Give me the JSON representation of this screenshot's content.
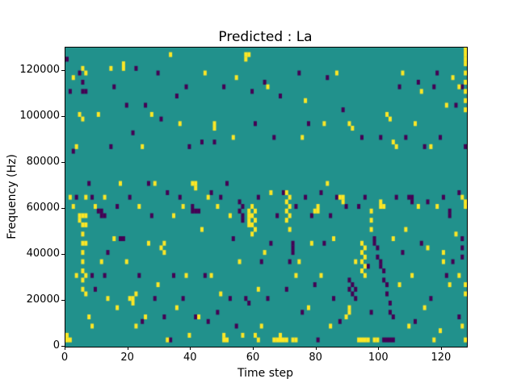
{
  "title": "Predicted : La",
  "chart_data": {
    "type": "heatmap",
    "title": "Predicted : La",
    "xlabel": "Time step",
    "ylabel": "Frequency (Hz)",
    "xlim": [
      0,
      128
    ],
    "ylim": [
      0,
      130000
    ],
    "x_ticks": [
      0,
      20,
      40,
      60,
      80,
      100,
      120
    ],
    "y_ticks": [
      0,
      20000,
      40000,
      60000,
      80000,
      100000,
      120000
    ],
    "grid": false,
    "legend": "none",
    "cell_size": {
      "x": 1,
      "y": 2000
    },
    "colors": {
      "background": "#21918c",
      "high": "#fde725",
      "low": "#440154"
    },
    "cells_high": [
      [
        0,
        2000
      ],
      [
        0,
        4000
      ],
      [
        1,
        2000
      ],
      [
        1,
        64000
      ],
      [
        2,
        116000
      ],
      [
        2,
        60000
      ],
      [
        3,
        30000
      ],
      [
        4,
        56000
      ],
      [
        4,
        54000
      ],
      [
        5,
        56000
      ],
      [
        5,
        52000
      ],
      [
        5,
        48000
      ],
      [
        5,
        44000
      ],
      [
        5,
        40000
      ],
      [
        5,
        36000
      ],
      [
        5,
        32000
      ],
      [
        5,
        28000
      ],
      [
        5,
        24000
      ],
      [
        6,
        56000
      ],
      [
        6,
        52000
      ],
      [
        6,
        44000
      ],
      [
        6,
        30000
      ],
      [
        6,
        22000
      ],
      [
        5,
        120000
      ],
      [
        6,
        118000
      ],
      [
        4,
        100000
      ],
      [
        5,
        98000
      ],
      [
        3,
        86000
      ],
      [
        6,
        64000
      ],
      [
        7,
        12000
      ],
      [
        8,
        8000
      ],
      [
        9,
        60000
      ],
      [
        10,
        100000
      ],
      [
        11,
        36000
      ],
      [
        12,
        64000
      ],
      [
        13,
        20000
      ],
      [
        14,
        120000
      ],
      [
        15,
        46000
      ],
      [
        16,
        16000
      ],
      [
        17,
        70000
      ],
      [
        18,
        122000
      ],
      [
        18,
        120000
      ],
      [
        19,
        36000
      ],
      [
        20,
        20000
      ],
      [
        21,
        20000
      ],
      [
        21,
        18000
      ],
      [
        22,
        22000
      ],
      [
        22,
        8000
      ],
      [
        23,
        60000
      ],
      [
        24,
        86000
      ],
      [
        25,
        12000
      ],
      [
        26,
        44000
      ],
      [
        27,
        100000
      ],
      [
        28,
        70000
      ],
      [
        29,
        26000
      ],
      [
        30,
        42000
      ],
      [
        31,
        40000
      ],
      [
        31,
        44000
      ],
      [
        32,
        2000
      ],
      [
        33,
        126000
      ],
      [
        34,
        56000
      ],
      [
        35,
        16000
      ],
      [
        36,
        96000
      ],
      [
        37,
        60000
      ],
      [
        38,
        30000
      ],
      [
        39,
        4000
      ],
      [
        40,
        70000
      ],
      [
        41,
        70000
      ],
      [
        41,
        68000
      ],
      [
        42,
        12000
      ],
      [
        43,
        50000
      ],
      [
        44,
        118000
      ],
      [
        45,
        64000
      ],
      [
        46,
        30000
      ],
      [
        47,
        96000
      ],
      [
        47,
        94000
      ],
      [
        48,
        60000
      ],
      [
        49,
        22000
      ],
      [
        50,
        4000
      ],
      [
        50,
        2000
      ],
      [
        51,
        2000
      ],
      [
        52,
        56000
      ],
      [
        53,
        90000
      ],
      [
        54,
        116000
      ],
      [
        55,
        36000
      ],
      [
        56,
        4000
      ],
      [
        57,
        126000
      ],
      [
        57,
        124000
      ],
      [
        58,
        126000
      ],
      [
        58,
        58000
      ],
      [
        58,
        56000
      ],
      [
        58,
        54000
      ],
      [
        58,
        52000
      ],
      [
        59,
        60000
      ],
      [
        59,
        56000
      ],
      [
        59,
        52000
      ],
      [
        59,
        48000
      ],
      [
        60,
        58000
      ],
      [
        60,
        54000
      ],
      [
        60,
        50000
      ],
      [
        60,
        4000
      ],
      [
        61,
        2000
      ],
      [
        61,
        24000
      ],
      [
        62,
        8000
      ],
      [
        63,
        40000
      ],
      [
        64,
        112000
      ],
      [
        65,
        66000
      ],
      [
        66,
        2000
      ],
      [
        67,
        2000
      ],
      [
        68,
        2000
      ],
      [
        68,
        4000
      ],
      [
        69,
        2000
      ],
      [
        70,
        2000
      ],
      [
        70,
        66000
      ],
      [
        70,
        62000
      ],
      [
        70,
        58000
      ],
      [
        70,
        54000
      ],
      [
        71,
        64000
      ],
      [
        71,
        60000
      ],
      [
        71,
        56000
      ],
      [
        71,
        50000
      ],
      [
        72,
        2000
      ],
      [
        73,
        2000
      ],
      [
        73,
        30000
      ],
      [
        74,
        36000
      ],
      [
        75,
        90000
      ],
      [
        76,
        106000
      ],
      [
        77,
        16000
      ],
      [
        78,
        44000
      ],
      [
        79,
        58000
      ],
      [
        80,
        60000
      ],
      [
        80,
        58000
      ],
      [
        81,
        30000
      ],
      [
        82,
        96000
      ],
      [
        83,
        70000
      ],
      [
        84,
        8000
      ],
      [
        85,
        46000
      ],
      [
        86,
        118000
      ],
      [
        87,
        64000
      ],
      [
        88,
        64000
      ],
      [
        88,
        62000
      ],
      [
        89,
        12000
      ],
      [
        90,
        16000
      ],
      [
        90,
        14000
      ],
      [
        90,
        96000
      ],
      [
        91,
        94000
      ],
      [
        92,
        36000
      ],
      [
        93,
        2000
      ],
      [
        94,
        2000
      ],
      [
        94,
        44000
      ],
      [
        94,
        40000
      ],
      [
        94,
        36000
      ],
      [
        94,
        32000
      ],
      [
        95,
        42000
      ],
      [
        95,
        38000
      ],
      [
        95,
        34000
      ],
      [
        95,
        30000
      ],
      [
        95,
        2000
      ],
      [
        96,
        2000
      ],
      [
        97,
        58000
      ],
      [
        97,
        54000
      ],
      [
        97,
        50000
      ],
      [
        98,
        2000
      ],
      [
        99,
        2000
      ],
      [
        100,
        62000
      ],
      [
        100,
        60000
      ],
      [
        101,
        60000
      ],
      [
        102,
        100000
      ],
      [
        103,
        98000
      ],
      [
        104,
        88000
      ],
      [
        104,
        46000
      ],
      [
        105,
        86000
      ],
      [
        106,
        26000
      ],
      [
        107,
        118000
      ],
      [
        108,
        50000
      ],
      [
        109,
        8000
      ],
      [
        110,
        30000
      ],
      [
        111,
        96000
      ],
      [
        112,
        60000
      ],
      [
        113,
        110000
      ],
      [
        114,
        16000
      ],
      [
        115,
        42000
      ],
      [
        116,
        86000
      ],
      [
        117,
        2000
      ],
      [
        118,
        60000
      ],
      [
        119,
        6000
      ],
      [
        120,
        40000
      ],
      [
        120,
        36000
      ],
      [
        121,
        104000
      ],
      [
        122,
        26000
      ],
      [
        123,
        116000
      ],
      [
        124,
        48000
      ],
      [
        125,
        30000
      ],
      [
        126,
        8000
      ],
      [
        127,
        128000
      ],
      [
        127,
        126000
      ],
      [
        127,
        124000
      ],
      [
        127,
        122000
      ],
      [
        127,
        118000
      ],
      [
        127,
        114000
      ],
      [
        127,
        110000
      ],
      [
        127,
        106000
      ],
      [
        127,
        102000
      ],
      [
        127,
        62000
      ],
      [
        127,
        60000
      ],
      [
        127,
        26000
      ],
      [
        127,
        22000
      ],
      [
        127,
        2000
      ],
      [
        126,
        64000
      ],
      [
        125,
        112000
      ]
    ],
    "cells_low": [
      [
        0,
        124000
      ],
      [
        1,
        110000
      ],
      [
        2,
        84000
      ],
      [
        3,
        64000
      ],
      [
        4,
        118000
      ],
      [
        5,
        114000
      ],
      [
        5,
        110000
      ],
      [
        6,
        110000
      ],
      [
        7,
        70000
      ],
      [
        8,
        64000
      ],
      [
        8,
        30000
      ],
      [
        9,
        24000
      ],
      [
        10,
        58000
      ],
      [
        11,
        58000
      ],
      [
        11,
        56000
      ],
      [
        12,
        56000
      ],
      [
        12,
        30000
      ],
      [
        13,
        40000
      ],
      [
        14,
        86000
      ],
      [
        15,
        112000
      ],
      [
        16,
        60000
      ],
      [
        17,
        46000
      ],
      [
        18,
        46000
      ],
      [
        19,
        104000
      ],
      [
        20,
        64000
      ],
      [
        21,
        92000
      ],
      [
        22,
        120000
      ],
      [
        23,
        30000
      ],
      [
        24,
        10000
      ],
      [
        25,
        104000
      ],
      [
        26,
        70000
      ],
      [
        27,
        56000
      ],
      [
        28,
        20000
      ],
      [
        29,
        118000
      ],
      [
        30,
        98000
      ],
      [
        31,
        12000
      ],
      [
        32,
        66000
      ],
      [
        33,
        2000
      ],
      [
        34,
        30000
      ],
      [
        35,
        108000
      ],
      [
        36,
        64000
      ],
      [
        37,
        20000
      ],
      [
        38,
        112000
      ],
      [
        39,
        86000
      ],
      [
        40,
        60000
      ],
      [
        40,
        58000
      ],
      [
        41,
        58000
      ],
      [
        41,
        12000
      ],
      [
        42,
        58000
      ],
      [
        43,
        88000
      ],
      [
        44,
        30000
      ],
      [
        45,
        10000
      ],
      [
        46,
        66000
      ],
      [
        47,
        88000
      ],
      [
        48,
        14000
      ],
      [
        49,
        64000
      ],
      [
        50,
        112000
      ],
      [
        51,
        70000
      ],
      [
        52,
        20000
      ],
      [
        53,
        46000
      ],
      [
        54,
        8000
      ],
      [
        55,
        62000
      ],
      [
        55,
        58000
      ],
      [
        56,
        60000
      ],
      [
        56,
        56000
      ],
      [
        56,
        54000
      ],
      [
        57,
        20000
      ],
      [
        58,
        18000
      ],
      [
        59,
        110000
      ],
      [
        60,
        96000
      ],
      [
        61,
        64000
      ],
      [
        62,
        36000
      ],
      [
        63,
        114000
      ],
      [
        64,
        20000
      ],
      [
        65,
        44000
      ],
      [
        66,
        90000
      ],
      [
        67,
        56000
      ],
      [
        68,
        108000
      ],
      [
        69,
        66000
      ],
      [
        70,
        24000
      ],
      [
        71,
        36000
      ],
      [
        72,
        44000
      ],
      [
        72,
        42000
      ],
      [
        72,
        40000
      ],
      [
        73,
        60000
      ],
      [
        74,
        118000
      ],
      [
        75,
        14000
      ],
      [
        76,
        64000
      ],
      [
        77,
        96000
      ],
      [
        78,
        56000
      ],
      [
        79,
        26000
      ],
      [
        80,
        2000
      ],
      [
        81,
        66000
      ],
      [
        82,
        44000
      ],
      [
        83,
        116000
      ],
      [
        84,
        56000
      ],
      [
        85,
        20000
      ],
      [
        86,
        64000
      ],
      [
        87,
        10000
      ],
      [
        88,
        102000
      ],
      [
        89,
        60000
      ],
      [
        90,
        28000
      ],
      [
        90,
        24000
      ],
      [
        91,
        26000
      ],
      [
        91,
        22000
      ],
      [
        92,
        24000
      ],
      [
        92,
        20000
      ],
      [
        93,
        60000
      ],
      [
        94,
        90000
      ],
      [
        95,
        64000
      ],
      [
        96,
        34000
      ],
      [
        97,
        14000
      ],
      [
        98,
        46000
      ],
      [
        98,
        44000
      ],
      [
        99,
        42000
      ],
      [
        99,
        38000
      ],
      [
        100,
        90000
      ],
      [
        100,
        36000
      ],
      [
        100,
        34000
      ],
      [
        101,
        32000
      ],
      [
        101,
        28000
      ],
      [
        101,
        2000
      ],
      [
        102,
        26000
      ],
      [
        102,
        22000
      ],
      [
        102,
        2000
      ],
      [
        103,
        18000
      ],
      [
        103,
        14000
      ],
      [
        103,
        2000
      ],
      [
        104,
        12000
      ],
      [
        104,
        2000
      ],
      [
        105,
        64000
      ],
      [
        106,
        112000
      ],
      [
        107,
        40000
      ],
      [
        108,
        90000
      ],
      [
        109,
        64000
      ],
      [
        110,
        64000
      ],
      [
        110,
        62000
      ],
      [
        111,
        10000
      ],
      [
        112,
        114000
      ],
      [
        113,
        44000
      ],
      [
        114,
        86000
      ],
      [
        115,
        62000
      ],
      [
        116,
        20000
      ],
      [
        117,
        112000
      ],
      [
        118,
        118000
      ],
      [
        119,
        90000
      ],
      [
        120,
        64000
      ],
      [
        121,
        30000
      ],
      [
        122,
        58000
      ],
      [
        122,
        56000
      ],
      [
        123,
        36000
      ],
      [
        124,
        104000
      ],
      [
        125,
        12000
      ],
      [
        126,
        112000
      ],
      [
        126,
        46000
      ],
      [
        126,
        42000
      ],
      [
        126,
        38000
      ],
      [
        127,
        86000
      ],
      [
        125,
        66000
      ]
    ]
  }
}
